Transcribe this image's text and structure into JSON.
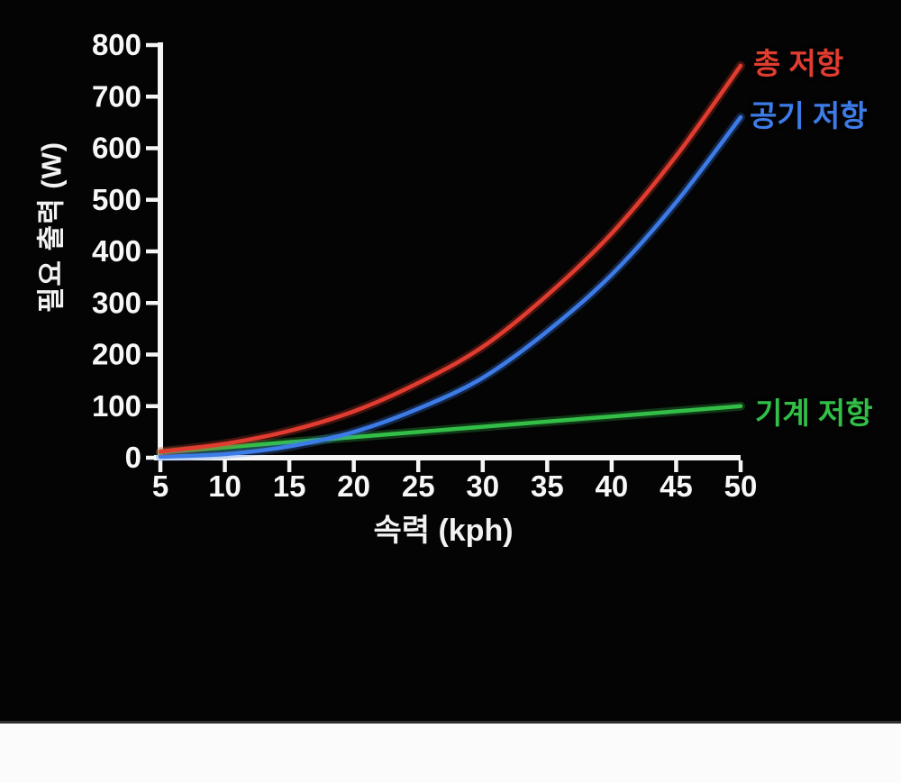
{
  "page": {
    "background_color": "#040404",
    "footer_strip_color": "#fbfbfb"
  },
  "chart_data": {
    "type": "line",
    "title": "",
    "xlabel": "속력 (kph)",
    "ylabel": "필요 출력 (W)",
    "xlim": [
      5,
      50
    ],
    "ylim": [
      0,
      800
    ],
    "x_ticks": [
      5,
      10,
      15,
      20,
      25,
      30,
      35,
      40,
      45,
      50
    ],
    "y_ticks": [
      0,
      100,
      200,
      300,
      400,
      500,
      600,
      700,
      800
    ],
    "grid": false,
    "legend_position": "right of curve ends",
    "axis_color": "#f5f5f5",
    "tick_label_color": "#f7f7f7",
    "x": [
      5,
      10,
      15,
      20,
      25,
      30,
      35,
      40,
      45,
      50
    ],
    "series": [
      {
        "name": "총 저항",
        "color": "#e23c30",
        "values": [
          12,
          27,
          52,
          90,
          145,
          215,
          315,
          435,
          585,
          760
        ]
      },
      {
        "name": "공기 저항",
        "color": "#3d7ce8",
        "values": [
          2,
          7,
          22,
          50,
          95,
          155,
          245,
          355,
          495,
          660
        ]
      },
      {
        "name": "기계 저항",
        "color": "#33bf47",
        "values": [
          10,
          20,
          30,
          40,
          50,
          60,
          70,
          80,
          90,
          100
        ]
      }
    ]
  }
}
